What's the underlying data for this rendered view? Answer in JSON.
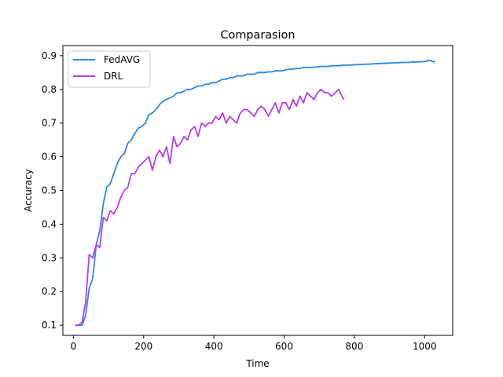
{
  "chart_data": {
    "type": "line",
    "title": "Comparasion",
    "xlabel": "Time",
    "ylabel": "Accuracy",
    "xlim": [
      -30,
      1080
    ],
    "ylim": [
      0.07,
      0.93
    ],
    "xticks": [
      0,
      200,
      400,
      600,
      800,
      1000
    ],
    "yticks": [
      0.1,
      0.2,
      0.3,
      0.4,
      0.5,
      0.6,
      0.7,
      0.8,
      0.9
    ],
    "grid": false,
    "legend_position": "upper-left",
    "series": [
      {
        "name": "FedAVG",
        "color": "#2a88e0",
        "x": [
          5,
          15,
          25,
          35,
          45,
          55,
          65,
          75,
          85,
          95,
          105,
          115,
          125,
          135,
          145,
          155,
          165,
          175,
          185,
          195,
          205,
          215,
          225,
          235,
          245,
          255,
          265,
          275,
          285,
          295,
          305,
          315,
          325,
          335,
          345,
          355,
          365,
          375,
          385,
          395,
          405,
          415,
          425,
          435,
          445,
          455,
          465,
          475,
          485,
          495,
          505,
          515,
          525,
          535,
          545,
          555,
          565,
          575,
          585,
          595,
          605,
          615,
          625,
          635,
          645,
          655,
          665,
          675,
          685,
          695,
          705,
          715,
          725,
          735,
          745,
          755,
          765,
          775,
          785,
          795,
          805,
          815,
          825,
          835,
          845,
          855,
          865,
          875,
          885,
          895,
          905,
          915,
          925,
          935,
          945,
          955,
          965,
          975,
          985,
          995,
          1005,
          1015,
          1025,
          1030
        ],
        "y": [
          0.1,
          0.1,
          0.1,
          0.13,
          0.21,
          0.24,
          0.34,
          0.38,
          0.46,
          0.51,
          0.52,
          0.55,
          0.58,
          0.6,
          0.61,
          0.64,
          0.65,
          0.67,
          0.685,
          0.69,
          0.7,
          0.725,
          0.73,
          0.74,
          0.755,
          0.765,
          0.77,
          0.775,
          0.78,
          0.79,
          0.79,
          0.795,
          0.8,
          0.8,
          0.805,
          0.81,
          0.81,
          0.815,
          0.815,
          0.82,
          0.82,
          0.825,
          0.83,
          0.83,
          0.835,
          0.835,
          0.84,
          0.84,
          0.84,
          0.845,
          0.845,
          0.845,
          0.85,
          0.85,
          0.85,
          0.852,
          0.852,
          0.855,
          0.855,
          0.855,
          0.858,
          0.86,
          0.86,
          0.862,
          0.862,
          0.865,
          0.865,
          0.865,
          0.866,
          0.867,
          0.868,
          0.868,
          0.868,
          0.87,
          0.87,
          0.87,
          0.871,
          0.872,
          0.872,
          0.873,
          0.873,
          0.874,
          0.874,
          0.875,
          0.875,
          0.876,
          0.876,
          0.877,
          0.877,
          0.878,
          0.878,
          0.879,
          0.879,
          0.88,
          0.88,
          0.88,
          0.881,
          0.881,
          0.882,
          0.882,
          0.884,
          0.886,
          0.882,
          0.882
        ]
      },
      {
        "name": "DRL",
        "color": "#b43cf0",
        "x": [
          5,
          15,
          25,
          35,
          45,
          55,
          65,
          75,
          85,
          95,
          105,
          115,
          125,
          135,
          145,
          155,
          165,
          175,
          185,
          195,
          205,
          215,
          225,
          235,
          245,
          255,
          265,
          275,
          285,
          295,
          305,
          315,
          325,
          335,
          345,
          355,
          365,
          375,
          385,
          395,
          405,
          415,
          425,
          435,
          445,
          455,
          465,
          475,
          485,
          495,
          505,
          515,
          525,
          535,
          545,
          555,
          565,
          575,
          585,
          595,
          605,
          615,
          625,
          635,
          645,
          655,
          665,
          675,
          685,
          695,
          705,
          715,
          725,
          735,
          745,
          755,
          765,
          770
        ],
        "y": [
          0.1,
          0.1,
          0.11,
          0.17,
          0.31,
          0.3,
          0.34,
          0.33,
          0.42,
          0.41,
          0.44,
          0.43,
          0.45,
          0.48,
          0.5,
          0.51,
          0.55,
          0.55,
          0.57,
          0.58,
          0.59,
          0.6,
          0.56,
          0.6,
          0.62,
          0.6,
          0.63,
          0.58,
          0.66,
          0.63,
          0.64,
          0.66,
          0.65,
          0.68,
          0.69,
          0.66,
          0.7,
          0.69,
          0.7,
          0.7,
          0.72,
          0.71,
          0.73,
          0.7,
          0.72,
          0.71,
          0.7,
          0.73,
          0.74,
          0.74,
          0.73,
          0.72,
          0.74,
          0.75,
          0.74,
          0.72,
          0.74,
          0.76,
          0.73,
          0.76,
          0.76,
          0.74,
          0.77,
          0.75,
          0.78,
          0.76,
          0.79,
          0.78,
          0.77,
          0.79,
          0.8,
          0.79,
          0.79,
          0.78,
          0.79,
          0.8,
          0.78,
          0.77
        ]
      }
    ]
  }
}
